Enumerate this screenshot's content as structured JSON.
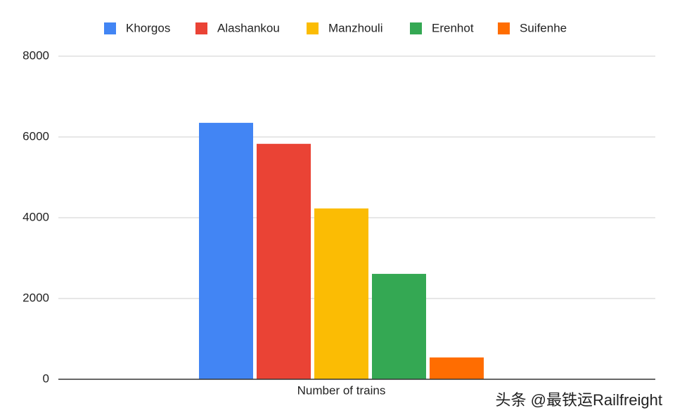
{
  "chart_data": {
    "type": "bar",
    "categories": [
      "Number of trains"
    ],
    "series": [
      {
        "name": "Khorgos",
        "color": "#4285f4",
        "values": [
          6350
        ]
      },
      {
        "name": "Alashankou",
        "color": "#ea4335",
        "values": [
          5830
        ]
      },
      {
        "name": "Manzhouli",
        "color": "#fbbc04",
        "values": [
          4230
        ]
      },
      {
        "name": "Erenhot",
        "color": "#34a853",
        "values": [
          2610
        ]
      },
      {
        "name": "Suifenhe",
        "color": "#ff6d01",
        "values": [
          540
        ]
      }
    ],
    "ylim": [
      0,
      8000
    ],
    "yticks": [
      0,
      2000,
      4000,
      6000,
      8000
    ],
    "grid": true,
    "legend": "top"
  },
  "watermark": "头条 @最铁运Railfreight"
}
